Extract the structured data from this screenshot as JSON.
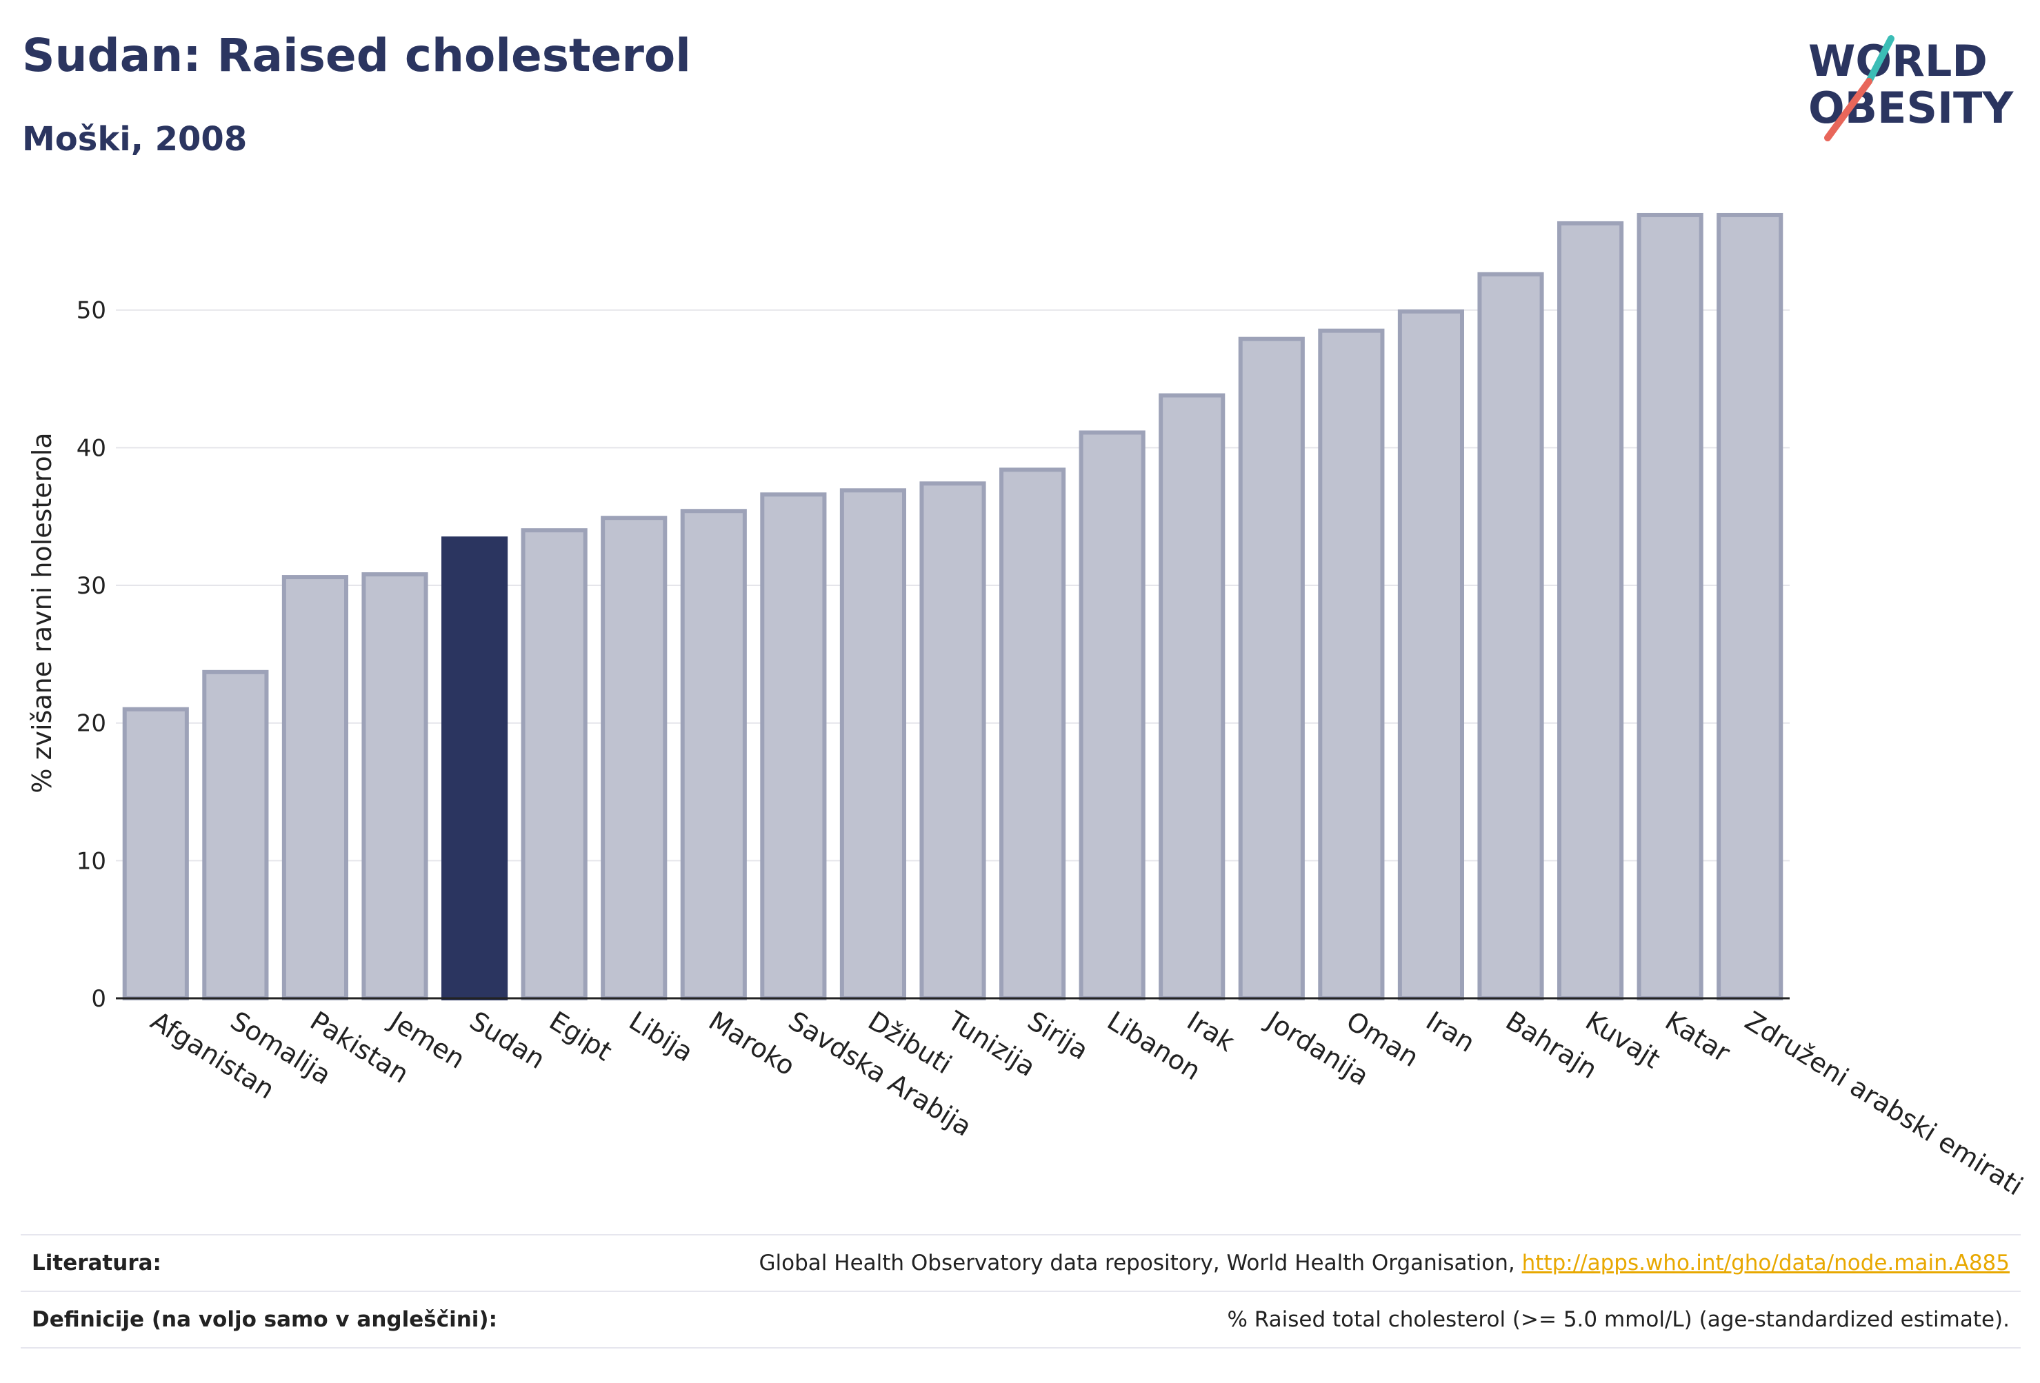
{
  "title": "Sudan: Raised cholesterol",
  "subtitle": "Moški, 2008",
  "logo": {
    "line1": "WORLD",
    "line2": "OBESITY",
    "colors": {
      "text": "#2b3560",
      "slash_teal": "#3bbdb6",
      "slash_red": "#e8665a"
    }
  },
  "colors": {
    "bar": "#bfc2d0",
    "bar_border": "#9da2b8",
    "highlight": "#2b3560",
    "grid": "#e5e5ea",
    "axis": "#222222"
  },
  "chart_data": {
    "type": "bar",
    "title": "Sudan: Raised cholesterol",
    "subtitle": "Moški, 2008",
    "xlabel": "",
    "ylabel": "% zvišane ravni holesterola",
    "ylim": [
      0,
      58
    ],
    "yticks": [
      0,
      10,
      20,
      30,
      40,
      50
    ],
    "grid": true,
    "highlight": "Sudan",
    "categories": [
      "Afganistan",
      "Somalija",
      "Pakistan",
      "Jemen",
      "Sudan",
      "Egipt",
      "Libija",
      "Maroko",
      "Savdska Arabija",
      "Džibuti",
      "Tunizija",
      "Sirija",
      "Libanon",
      "Irak",
      "Jordanija",
      "Oman",
      "Iran",
      "Bahrajn",
      "Kuvajt",
      "Katar",
      "Združeni arabski emirati"
    ],
    "values": [
      21.0,
      23.7,
      30.6,
      30.8,
      33.4,
      34.0,
      34.9,
      35.4,
      36.6,
      36.9,
      37.4,
      38.4,
      41.1,
      43.8,
      47.9,
      48.5,
      49.9,
      52.6,
      56.3,
      56.9,
      56.9
    ]
  },
  "footer": {
    "sources_label": "Literatura:",
    "sources_text": "Global Health Observatory data repository, World Health Organisation, ",
    "sources_link": "http://apps.who.int/gho/data/node.main.A885",
    "definitions_label": "Definicije (na voljo samo v angleščini):",
    "definitions_text": "% Raised total cholesterol (>= 5.0 mmol/L) (age-standardized estimate)."
  }
}
